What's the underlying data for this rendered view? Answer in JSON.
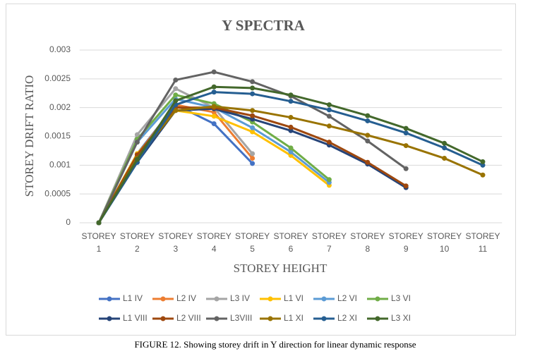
{
  "chart_data": {
    "type": "line",
    "title": "Y SPECTRA",
    "x_label": "STOREY HEIGHT",
    "y_label": "STOREY DRIFT RATIO",
    "caption": "FIGURE 12. Showing storey drift in Y direction for linear dynamic response",
    "categories": [
      "STOREY 1",
      "STOREY 2",
      "STOREY 3",
      "STOREY 4",
      "STOREY 5",
      "STOREY 6",
      "STOREY 7",
      "STOREY 8",
      "STOREY 9",
      "STOREY 10",
      "STOREY 11"
    ],
    "ylim": [
      0,
      0.003
    ],
    "yticks": [
      0,
      0.0005,
      0.001,
      0.0015,
      0.002,
      0.0025,
      0.003
    ],
    "grid": true,
    "legend": "bottom",
    "series": [
      {
        "name": "L1 IV",
        "color": "#4472c4",
        "values": [
          0,
          0.0012,
          0.00205,
          0.00172,
          0.00103,
          null,
          null,
          null,
          null,
          null,
          null
        ]
      },
      {
        "name": "L2 IV",
        "color": "#ed7d31",
        "values": [
          0,
          0.00118,
          0.00205,
          0.00192,
          0.00112,
          null,
          null,
          null,
          null,
          null,
          null
        ]
      },
      {
        "name": "L3 IV",
        "color": "#a5a5a5",
        "values": [
          0,
          0.00153,
          0.00233,
          0.002,
          0.0012,
          null,
          null,
          null,
          null,
          null,
          null
        ]
      },
      {
        "name": "L1 VI",
        "color": "#ffc000",
        "values": [
          0,
          0.0012,
          0.00195,
          0.00185,
          0.00158,
          0.00117,
          0.00065,
          null,
          null,
          null,
          null
        ]
      },
      {
        "name": "L2 VI",
        "color": "#5b9bd5",
        "values": [
          0,
          0.0014,
          0.00215,
          0.002,
          0.00165,
          0.00123,
          0.0007,
          null,
          null,
          null,
          null
        ]
      },
      {
        "name": "L3 VI",
        "color": "#70ad47",
        "values": [
          0,
          0.00145,
          0.00222,
          0.00207,
          0.00175,
          0.0013,
          0.00075,
          null,
          null,
          null,
          null
        ]
      },
      {
        "name": "L1 VIII",
        "color": "#264478",
        "values": [
          0,
          0.00105,
          0.00195,
          0.00198,
          0.0018,
          0.0016,
          0.00135,
          0.00102,
          0.00061,
          null,
          null
        ]
      },
      {
        "name": "L2 VIII",
        "color": "#9e480e",
        "values": [
          0,
          0.00118,
          0.002,
          0.002,
          0.00186,
          0.00166,
          0.0014,
          0.00105,
          0.00064,
          null,
          null
        ]
      },
      {
        "name": "L3VIII",
        "color": "#636363",
        "values": [
          0,
          0.0014,
          0.00248,
          0.00262,
          0.00245,
          0.0022,
          0.00185,
          0.00142,
          0.00094,
          null,
          null
        ]
      },
      {
        "name": "L1 XI",
        "color": "#997300",
        "values": [
          0,
          0.00112,
          0.00195,
          0.00202,
          0.00195,
          0.00183,
          0.00168,
          0.00152,
          0.00134,
          0.00112,
          0.00083
        ]
      },
      {
        "name": "L2 XI",
        "color": "#255e91",
        "values": [
          0,
          0.00105,
          0.00205,
          0.00227,
          0.00224,
          0.00211,
          0.00196,
          0.00177,
          0.00156,
          0.0013,
          0.001
        ]
      },
      {
        "name": "L3 XI",
        "color": "#43682b",
        "values": [
          0,
          0.0011,
          0.00212,
          0.00236,
          0.00234,
          0.00222,
          0.00205,
          0.00186,
          0.00164,
          0.00138,
          0.00106
        ]
      }
    ]
  }
}
